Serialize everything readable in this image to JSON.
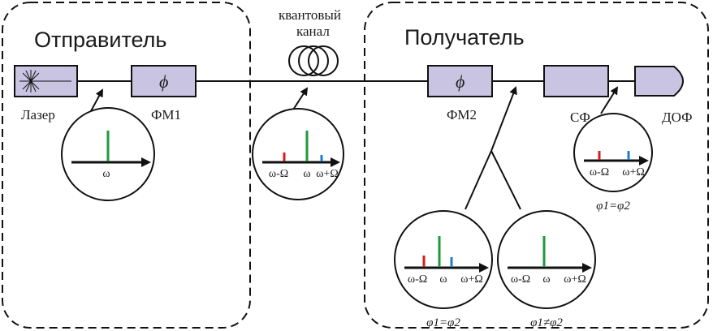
{
  "sender": {
    "title": "Отправитель"
  },
  "receiver": {
    "title": "Получатель"
  },
  "channel": {
    "label_line1": "квантовый",
    "label_line2": "канал"
  },
  "components": {
    "laser": "Лазер",
    "pm1": "ФМ1",
    "pm2": "ФМ2",
    "sf": "СФ",
    "dof": "ДОФ",
    "phase_symbol": "ϕ"
  },
  "spectra": {
    "laser": {
      "ticks": [
        "ω"
      ]
    },
    "channel": {
      "ticks": [
        "ω-Ω",
        "ω",
        "ω+Ω"
      ]
    },
    "equal": {
      "ticks": [
        "ω-Ω",
        "ω",
        "ω+Ω"
      ],
      "condition": "φ1=φ2"
    },
    "unequal": {
      "ticks": [
        "ω-Ω",
        "ω",
        "ω+Ω"
      ],
      "condition": "φ1≠φ2"
    },
    "filtered": {
      "ticks": [
        "ω-Ω",
        "ω+Ω"
      ],
      "condition": "φ1=φ2"
    }
  },
  "colors": {
    "red": "#d21f1f",
    "green": "#1f9a3c",
    "blue": "#1c7fcf",
    "box_fill": "#c9c4e2"
  }
}
